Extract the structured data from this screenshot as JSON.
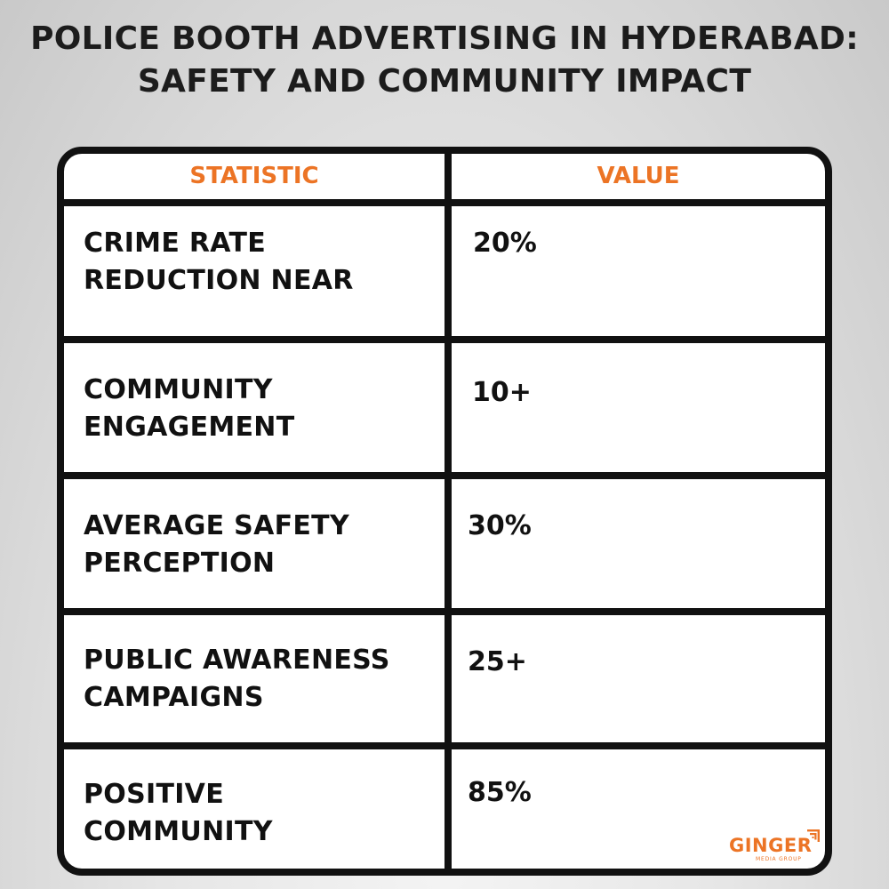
{
  "title": {
    "line1": "POLICE BOOTH ADVERTISING IN HYDERABAD:",
    "line2": "SAFETY AND COMMUNITY IMPACT"
  },
  "table": {
    "headers": {
      "statistic": "STATISTIC",
      "value": "VALUE"
    },
    "rows": [
      {
        "statistic_lines": [
          "CRIME RATE",
          "REDUCTION NEAR"
        ],
        "value": "20%"
      },
      {
        "statistic_lines": [
          "COMMUNITY",
          "ENGAGEMENT"
        ],
        "value": "10+"
      },
      {
        "statistic_lines": [
          "AVERAGE SAFETY",
          "PERCEPTION"
        ],
        "value": "30%"
      },
      {
        "statistic_lines": [
          "PUBLIC AWARENESS",
          "CAMPAIGNS"
        ],
        "value": "25+"
      },
      {
        "statistic_lines": [
          "POSITIVE",
          "COMMUNITY"
        ],
        "value": "85%"
      }
    ]
  },
  "logo": {
    "name": "GINGER",
    "tagline": "MEDIA GROUP",
    "icon": "ginger-logo-icon"
  },
  "colors": {
    "accent": "#ec7425",
    "text": "#111111",
    "border": "#111111"
  }
}
